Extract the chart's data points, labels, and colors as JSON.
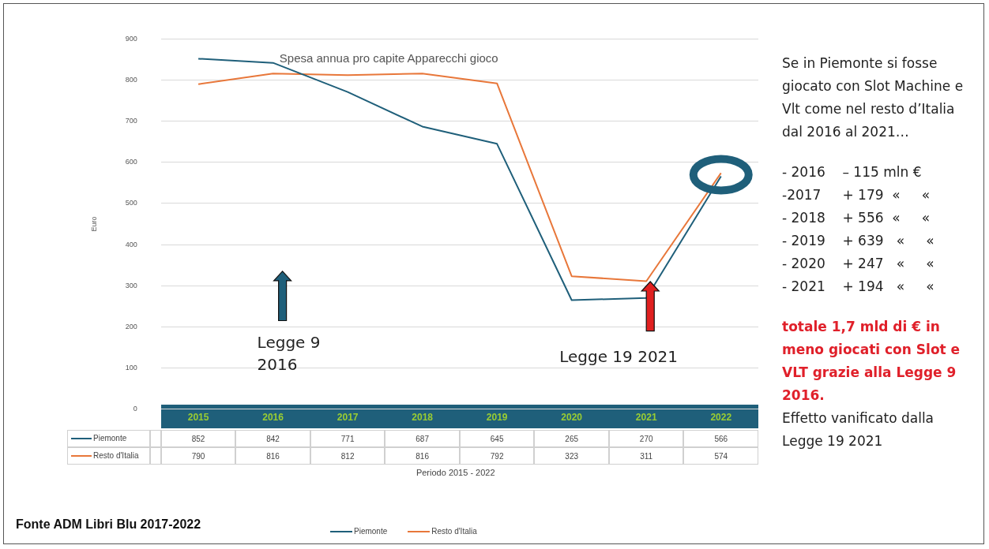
{
  "chart_data": {
    "type": "line",
    "title": "Spesa annua pro capite Apparecchi gioco",
    "ylabel": "Euro",
    "categories": [
      "2015",
      "2016",
      "2017",
      "2018",
      "2019",
      "2020",
      "2021",
      "2022"
    ],
    "series": [
      {
        "name": "Piemonte",
        "color": "#1f5f7a",
        "values": [
          852,
          842,
          771,
          687,
          645,
          265,
          270,
          566
        ]
      },
      {
        "name": "Resto d'Italia",
        "color": "#e8773a",
        "values": [
          790,
          816,
          812,
          816,
          792,
          323,
          311,
          574
        ]
      }
    ],
    "ylim": [
      0,
      900
    ],
    "yticks": [
      0,
      100,
      200,
      300,
      400,
      500,
      600,
      700,
      800,
      900
    ],
    "grid": "y",
    "legend": "bottom",
    "data_labels": true,
    "annotations": [
      "Legge 9 2016",
      "Legge 19 2021",
      "Periodo 2015 - 2022",
      "Se in Piemonte si fosse giocato con Slot Machine e Vlt come nel resto d’Italia dal 2016 al 2021…",
      "- 2016    – 115 mln €",
      "-2017     + 179  «     «",
      "- 2018    + 556  «     «",
      "- 2019    + 639   «     «",
      "- 2020    + 247   «     «",
      "- 2021    + 194   «     «",
      "totale 1,7 mld di € in meno giocati con Slot e VLT grazie alla Legge 9 2016.",
      "Effetto vanificato dalla Legge 19 2021",
      "Fonte ADM Libri Blu 2017-2022"
    ]
  }
}
